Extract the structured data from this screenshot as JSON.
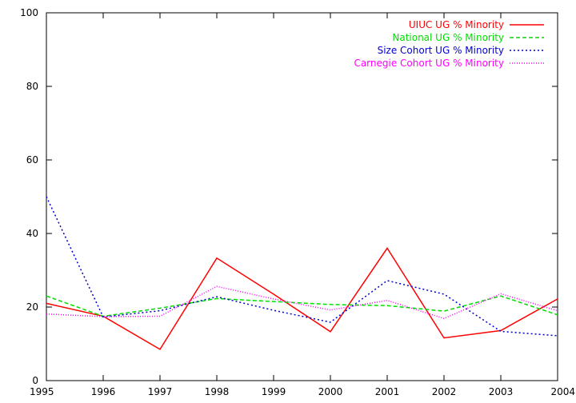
{
  "chart_data": {
    "type": "line",
    "title": "",
    "xlabel": "",
    "ylabel": "",
    "x": [
      1995,
      1996,
      1997,
      1998,
      1999,
      2000,
      2001,
      2002,
      2003,
      2004
    ],
    "xlim": [
      1995,
      2004
    ],
    "ylim": [
      0,
      100
    ],
    "x_ticks": [
      "1995",
      "1996",
      "1997",
      "1998",
      "1999",
      "2000",
      "2001",
      "2002",
      "2003",
      "2004"
    ],
    "y_ticks": [
      "0",
      "20",
      "40",
      "60",
      "80",
      "100"
    ],
    "grid": false,
    "legend_position": "top-right",
    "series": [
      {
        "name": "UIUC UG % Minority",
        "color": "#ff0000",
        "dash": "solid",
        "values": [
          21,
          17.5,
          8.5,
          33.3,
          23.5,
          13.3,
          36,
          11.6,
          13.6,
          22.2
        ]
      },
      {
        "name": "National UG % Minority",
        "color": "#00dd00",
        "dash": "dashed",
        "values": [
          23,
          17.5,
          19.7,
          22.3,
          21.5,
          20.7,
          20.4,
          18.9,
          23,
          17.9
        ]
      },
      {
        "name": "Size Cohort UG % Minority",
        "color": "#0000cc",
        "dash": "dotted",
        "values": [
          50,
          17.3,
          19,
          22.8,
          19.1,
          15.9,
          27.2,
          23.5,
          13.4,
          12.2
        ]
      },
      {
        "name": "Carnegie Cohort UG % Minority",
        "color": "#ff00ff",
        "dash": "fine-dotted",
        "values": [
          18.1,
          17.4,
          17.5,
          25.6,
          22.2,
          19.2,
          21.8,
          16.9,
          23.6,
          19
        ]
      }
    ]
  }
}
